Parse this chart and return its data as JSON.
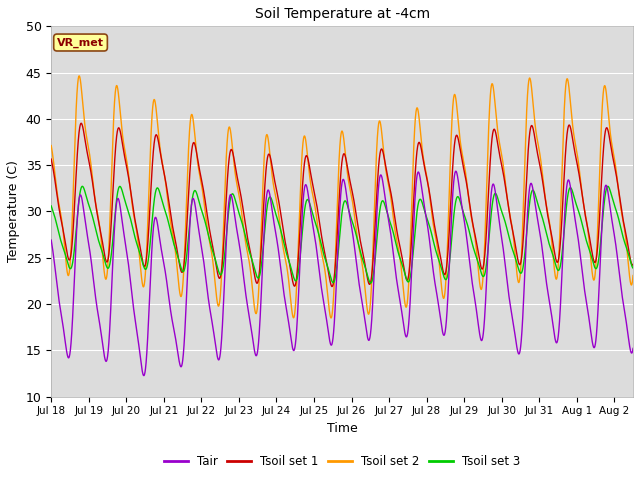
{
  "title": "Soil Temperature at -4cm",
  "xlabel": "Time",
  "ylabel": "Temperature (C)",
  "ylim": [
    10,
    50
  ],
  "xlim_start": 0,
  "xlim_end": 15.5,
  "background_color": "#dcdcdc",
  "legend_label": "VR_met",
  "colors": {
    "Tair": "#9900cc",
    "Tsoil1": "#cc0000",
    "Tsoil2": "#ff9900",
    "Tsoil3": "#00cc00"
  },
  "legend_labels": [
    "Tair",
    "Tsoil set 1",
    "Tsoil set 2",
    "Tsoil set 3"
  ],
  "xtick_labels": [
    "Jul 18",
    "Jul 19",
    "Jul 20",
    "Jul 21",
    "Jul 22",
    "Jul 23",
    "Jul 24",
    "Jul 25",
    "Jul 26",
    "Jul 27",
    "Jul 28",
    "Jul 29",
    "Jul 30",
    "Jul 31",
    "Aug 1",
    "Aug 2"
  ],
  "ytick_vals": [
    10,
    15,
    20,
    25,
    30,
    35,
    40,
    45,
    50
  ]
}
